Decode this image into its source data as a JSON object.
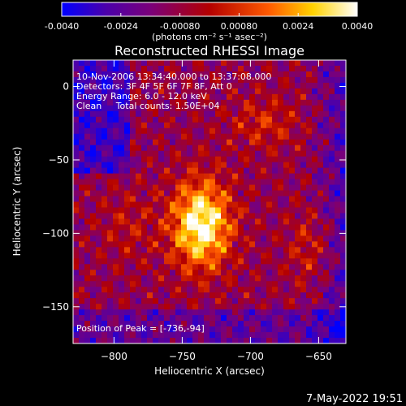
{
  "chart_data": {
    "type": "heatmap",
    "title": "Reconstructed RHESSI Image",
    "xlabel": "Heliocentric X (arcsec)",
    "ylabel": "Heliocentric Y (arcsec)",
    "xlim": [
      -830,
      -630
    ],
    "ylim": [
      -175,
      18
    ],
    "x_ticks": [
      -800,
      -750,
      -700,
      -650
    ],
    "y_ticks": [
      0,
      -50,
      -100,
      -150
    ],
    "colorbar": {
      "min": -0.004,
      "max": 0.004,
      "tick_values": [
        -0.004,
        -0.0024,
        -0.0008,
        0.0008,
        0.0024,
        0.004
      ],
      "tick_labels": [
        "-0.0040",
        "-0.0024",
        "-0.00080",
        "0.00080",
        "0.0024",
        "0.0040"
      ],
      "unit_label": "(photons cm⁻² s⁻¹ asec⁻²)",
      "colors": [
        "#0000ff",
        "#4b00aa",
        "#7a007a",
        "#b40000",
        "#ff5a00",
        "#ffd200",
        "#ffffff"
      ]
    },
    "annotations": [
      "10-Nov-2006 13:34:40.000 to 13:37:08.000",
      "Detectors: 3F 4F 5F 6F 7F 8F, Att 0",
      "Energy Range: 6.0 - 12.0 keV",
      "Clean     Total counts: 1.50E+04"
    ],
    "peak_label": "Position of Peak = [-736,-94]",
    "peak": {
      "x": -736,
      "y": -94,
      "value": 0.004
    }
  },
  "footer": {
    "date": "7-May-2022 19:51"
  }
}
